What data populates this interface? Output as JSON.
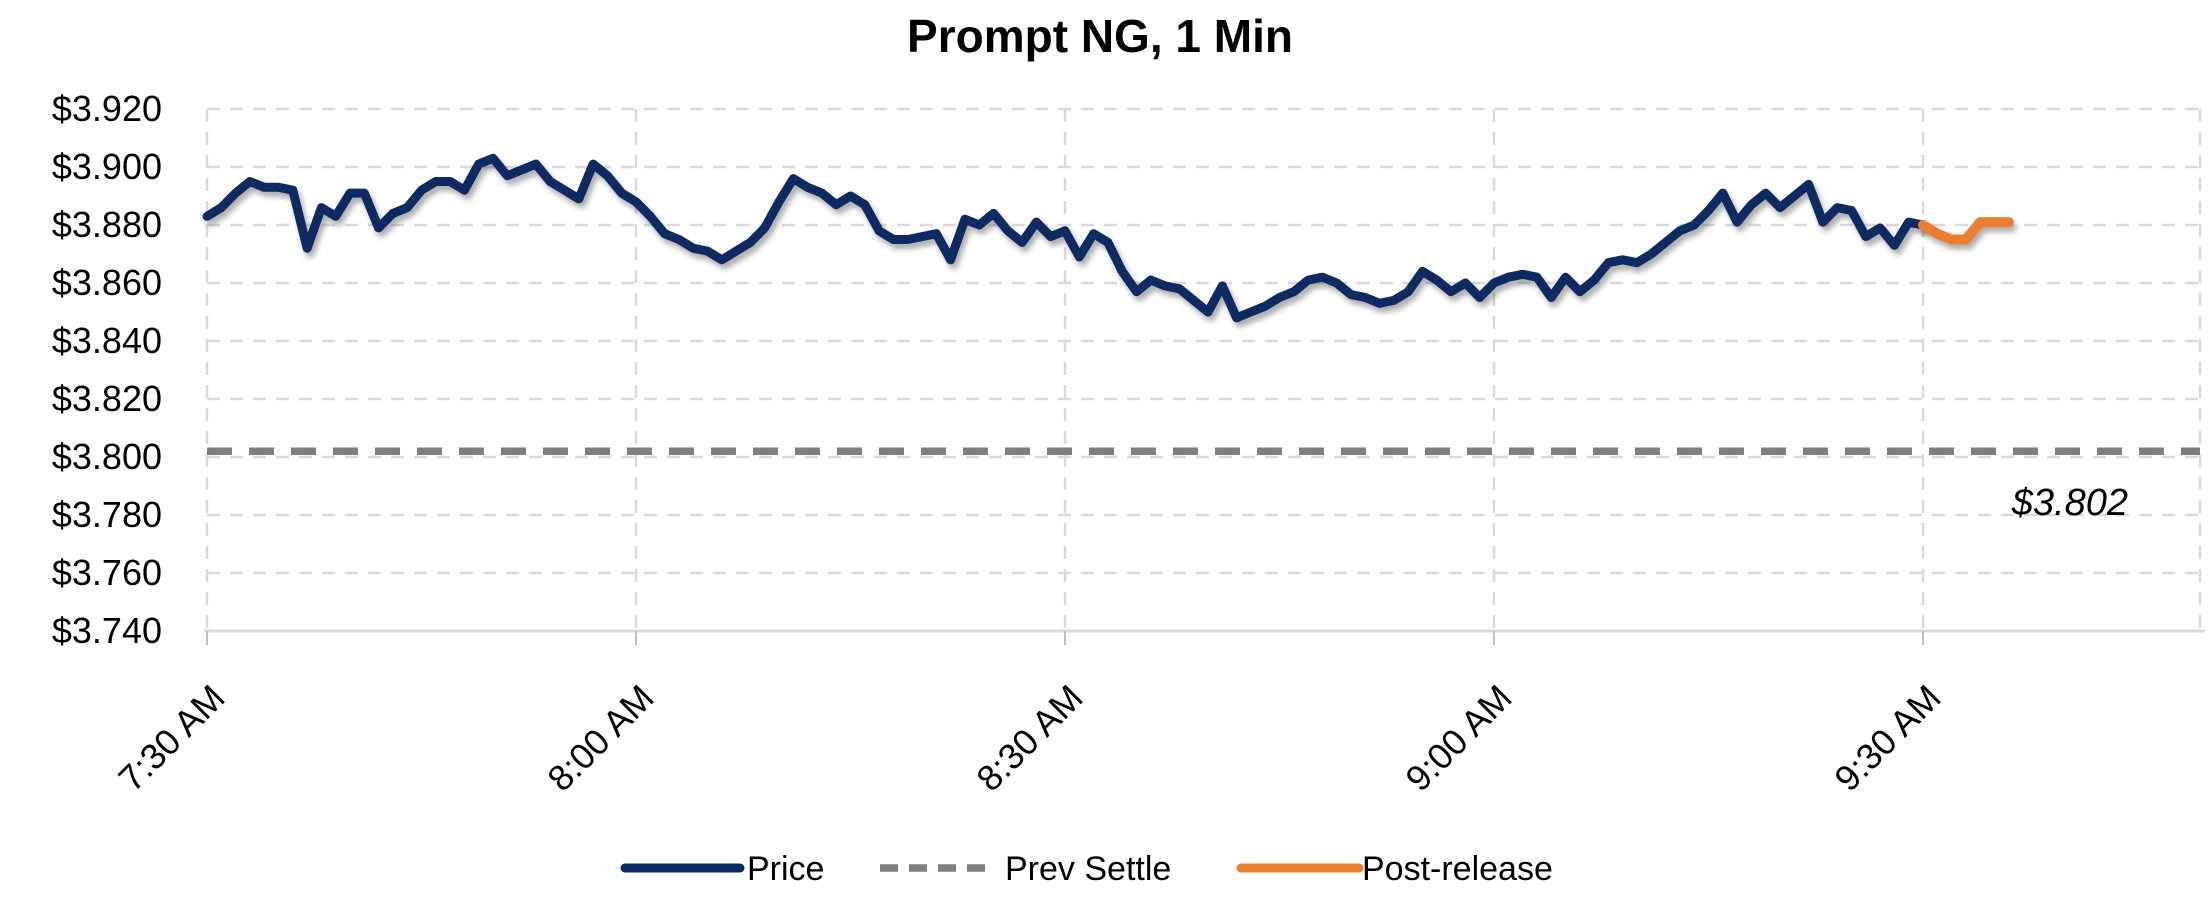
{
  "chart_data": {
    "type": "line",
    "title": "Prompt NG, 1 Min",
    "x_axis": {
      "tick_labels": [
        "7:30 AM",
        "8:00 AM",
        "8:30 AM",
        "9:00 AM",
        "9:30 AM"
      ],
      "tick_minutes": [
        0,
        30,
        60,
        90,
        120
      ],
      "minutes_range": [
        0,
        139
      ],
      "unit": "time of day, 1-minute bars"
    },
    "y_axis": {
      "tick_labels": [
        "$3.920",
        "$3.900",
        "$3.880",
        "$3.860",
        "$3.840",
        "$3.820",
        "$3.800",
        "$3.780",
        "$3.760",
        "$3.740"
      ],
      "tick_values": [
        3.92,
        3.9,
        3.88,
        3.86,
        3.84,
        3.82,
        3.8,
        3.78,
        3.76,
        3.74
      ],
      "min": 3.74,
      "max": 3.92
    },
    "grid": "dashed-light-gray",
    "legend_position": "bottom",
    "series": [
      {
        "name": "Price",
        "type": "line",
        "color": "#0E2A63",
        "x_start_minute": 0,
        "values": [
          3.883,
          3.886,
          3.891,
          3.895,
          3.893,
          3.893,
          3.892,
          3.872,
          3.886,
          3.883,
          3.891,
          3.891,
          3.879,
          3.884,
          3.886,
          3.892,
          3.895,
          3.895,
          3.892,
          3.901,
          3.903,
          3.897,
          3.899,
          3.901,
          3.895,
          3.892,
          3.889,
          3.901,
          3.897,
          3.891,
          3.888,
          3.883,
          3.877,
          3.875,
          3.872,
          3.871,
          3.868,
          3.871,
          3.874,
          3.879,
          3.888,
          3.896,
          3.893,
          3.891,
          3.887,
          3.89,
          3.887,
          3.878,
          3.875,
          3.875,
          3.876,
          3.877,
          3.868,
          3.882,
          3.88,
          3.884,
          3.878,
          3.874,
          3.881,
          3.876,
          3.878,
          3.869,
          3.877,
          3.874,
          3.864,
          3.857,
          3.861,
          3.859,
          3.858,
          3.854,
          3.85,
          3.859,
          3.848,
          3.85,
          3.852,
          3.855,
          3.857,
          3.861,
          3.862,
          3.86,
          3.856,
          3.855,
          3.853,
          3.854,
          3.857,
          3.864,
          3.861,
          3.857,
          3.86,
          3.855,
          3.86,
          3.862,
          3.863,
          3.862,
          3.855,
          3.862,
          3.857,
          3.861,
          3.867,
          3.868,
          3.867,
          3.87,
          3.874,
          3.878,
          3.88,
          3.885,
          3.891,
          3.881,
          3.887,
          3.891,
          3.886,
          3.89,
          3.894,
          3.881,
          3.886,
          3.885,
          3.876,
          3.879,
          3.873,
          3.881,
          3.88
        ]
      },
      {
        "name": "Prev Settle",
        "type": "horizontal-line",
        "style": "dashed",
        "color": "#7F7F7F",
        "value": 3.802
      },
      {
        "name": "Post-release",
        "type": "line",
        "color": "#ED7D31",
        "x_start_minute": 120,
        "values": [
          3.88,
          3.877,
          3.875,
          3.875,
          3.881,
          3.881,
          3.881
        ]
      }
    ],
    "annotation": {
      "text": "$3.802",
      "color": "#7F7F7F",
      "style": "italic",
      "refers_to": "Prev Settle"
    }
  },
  "legend": {
    "items": [
      {
        "label": "Price",
        "color": "#0E2A63",
        "dash": false
      },
      {
        "label": "Prev Settle",
        "color": "#7F7F7F",
        "dash": true
      },
      {
        "label": "Post-release",
        "color": "#ED7D31",
        "dash": false
      }
    ]
  },
  "colors": {
    "gridline": "#D9D9D9",
    "axis_line": "#D9D9D9",
    "tick_mark": "#BFBFBF",
    "title": "#000000",
    "axis_text": "#000000",
    "background": "#FFFFFF"
  }
}
